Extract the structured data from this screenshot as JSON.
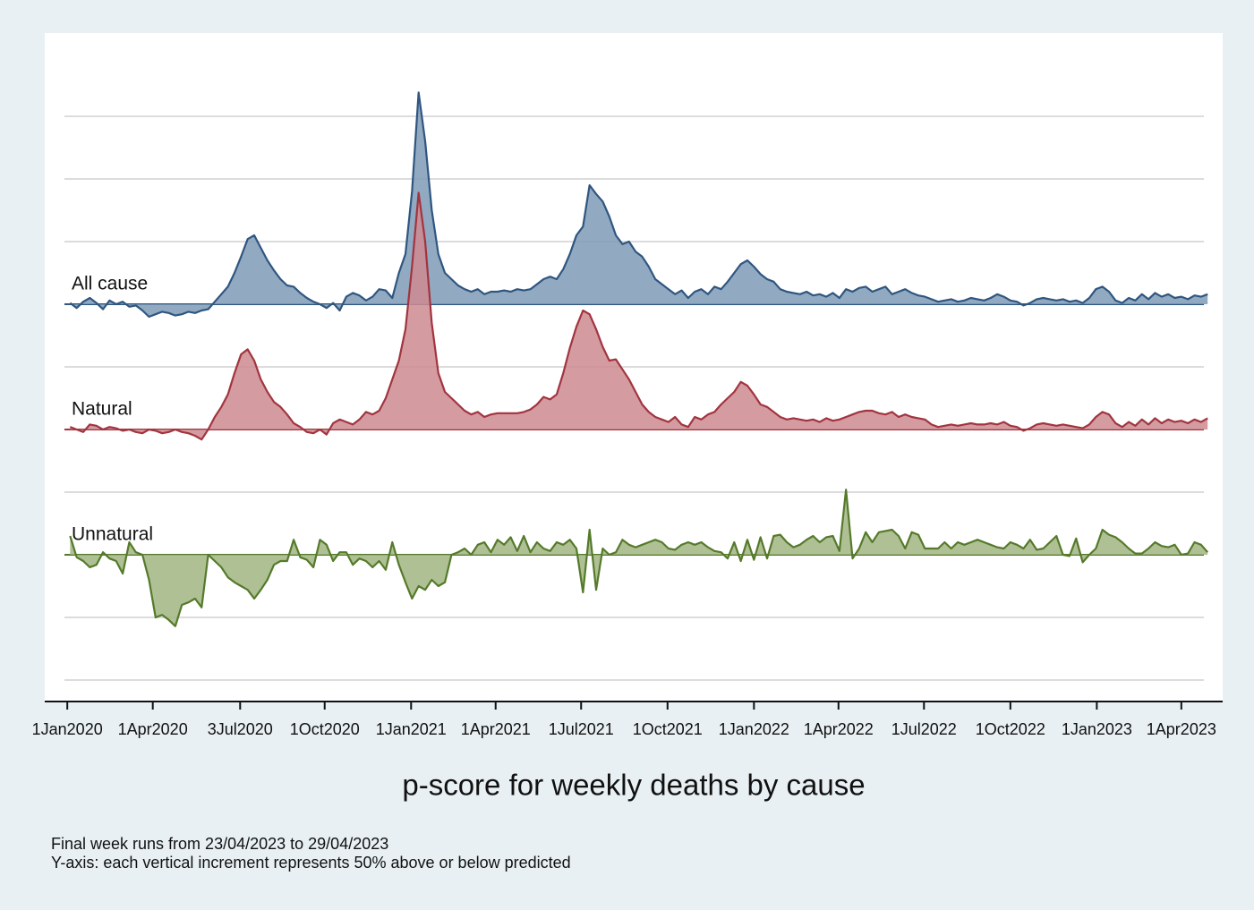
{
  "chart_data": {
    "type": "ridgeline",
    "title": "p-score for weekly deaths by cause",
    "notes": [
      "Final week runs from 23/04/2023 to 29/04/2023",
      "Y-axis: each vertical increment represents 50% above or below predicted"
    ],
    "xlim": [
      "2019-12-08",
      "2023-05-15"
    ],
    "ylim": [
      -300,
      200
    ],
    "yticks": [
      -300,
      -250,
      -200,
      -150,
      -100,
      -50,
      0,
      50,
      100,
      150
    ],
    "grid": true,
    "xticks": [
      {
        "value": "2020-01-01",
        "label": "1Jan2020"
      },
      {
        "value": "2020-04-01",
        "label": "1Apr2020"
      },
      {
        "value": "2020-07-03",
        "label": "3Jul2020"
      },
      {
        "value": "2020-10-01",
        "label": "1Oct2020"
      },
      {
        "value": "2021-01-01",
        "label": "1Jan2021"
      },
      {
        "value": "2021-04-01",
        "label": "1Apr2021"
      },
      {
        "value": "2021-07-01",
        "label": "1Jul2021"
      },
      {
        "value": "2021-10-01",
        "label": "1Oct2021"
      },
      {
        "value": "2022-01-01",
        "label": "1Jan2022"
      },
      {
        "value": "2022-04-01",
        "label": "1Apr2022"
      },
      {
        "value": "2022-07-01",
        "label": "1Jul2022"
      },
      {
        "value": "2022-10-01",
        "label": "1Oct2022"
      },
      {
        "value": "2023-01-01",
        "label": "1Jan2023"
      },
      {
        "value": "2023-04-01",
        "label": "1Apr2023"
      }
    ],
    "x": [
      "2020-01-04",
      "2020-01-11",
      "2020-01-18",
      "2020-01-25",
      "2020-02-01",
      "2020-02-08",
      "2020-02-15",
      "2020-02-22",
      "2020-02-29",
      "2020-03-07",
      "2020-03-14",
      "2020-03-21",
      "2020-03-28",
      "2020-04-04",
      "2020-04-11",
      "2020-04-18",
      "2020-04-25",
      "2020-05-02",
      "2020-05-09",
      "2020-05-16",
      "2020-05-23",
      "2020-05-30",
      "2020-06-06",
      "2020-06-13",
      "2020-06-20",
      "2020-06-27",
      "2020-07-04",
      "2020-07-11",
      "2020-07-18",
      "2020-07-25",
      "2020-08-01",
      "2020-08-08",
      "2020-08-15",
      "2020-08-22",
      "2020-08-29",
      "2020-09-05",
      "2020-09-12",
      "2020-09-19",
      "2020-09-26",
      "2020-10-03",
      "2020-10-10",
      "2020-10-17",
      "2020-10-24",
      "2020-10-31",
      "2020-11-07",
      "2020-11-14",
      "2020-11-21",
      "2020-11-28",
      "2020-12-05",
      "2020-12-12",
      "2020-12-19",
      "2020-12-26",
      "2021-01-02",
      "2021-01-09",
      "2021-01-16",
      "2021-01-23",
      "2021-01-30",
      "2021-02-06",
      "2021-02-13",
      "2021-02-20",
      "2021-02-27",
      "2021-03-06",
      "2021-03-13",
      "2021-03-20",
      "2021-03-27",
      "2021-04-03",
      "2021-04-10",
      "2021-04-17",
      "2021-04-24",
      "2021-05-01",
      "2021-05-08",
      "2021-05-15",
      "2021-05-22",
      "2021-05-29",
      "2021-06-05",
      "2021-06-12",
      "2021-06-19",
      "2021-06-26",
      "2021-07-03",
      "2021-07-10",
      "2021-07-17",
      "2021-07-24",
      "2021-07-31",
      "2021-08-07",
      "2021-08-14",
      "2021-08-21",
      "2021-08-28",
      "2021-09-04",
      "2021-09-11",
      "2021-09-18",
      "2021-09-25",
      "2021-10-02",
      "2021-10-09",
      "2021-10-16",
      "2021-10-23",
      "2021-10-30",
      "2021-11-06",
      "2021-11-13",
      "2021-11-20",
      "2021-11-27",
      "2021-12-04",
      "2021-12-11",
      "2021-12-18",
      "2021-12-25",
      "2022-01-01",
      "2022-01-08",
      "2022-01-15",
      "2022-01-22",
      "2022-01-29",
      "2022-02-05",
      "2022-02-12",
      "2022-02-19",
      "2022-02-26",
      "2022-03-05",
      "2022-03-12",
      "2022-03-19",
      "2022-03-26",
      "2022-04-02",
      "2022-04-09",
      "2022-04-16",
      "2022-04-23",
      "2022-04-30",
      "2022-05-07",
      "2022-05-14",
      "2022-05-21",
      "2022-05-28",
      "2022-06-04",
      "2022-06-11",
      "2022-06-18",
      "2022-06-25",
      "2022-07-02",
      "2022-07-09",
      "2022-07-16",
      "2022-07-23",
      "2022-07-30",
      "2022-08-06",
      "2022-08-13",
      "2022-08-20",
      "2022-08-27",
      "2022-09-03",
      "2022-09-10",
      "2022-09-17",
      "2022-09-24",
      "2022-10-01",
      "2022-10-08",
      "2022-10-15",
      "2022-10-22",
      "2022-10-29",
      "2022-11-05",
      "2022-11-12",
      "2022-11-19",
      "2022-11-26",
      "2022-12-03",
      "2022-12-10",
      "2022-12-17",
      "2022-12-24",
      "2022-12-31",
      "2023-01-07",
      "2023-01-14",
      "2023-01-21",
      "2023-01-28",
      "2023-02-04",
      "2023-02-11",
      "2023-02-18",
      "2023-02-25",
      "2023-03-04",
      "2023-03-11",
      "2023-03-18",
      "2023-03-25",
      "2023-04-01",
      "2023-04-08",
      "2023-04-15",
      "2023-04-22",
      "2023-04-29"
    ],
    "series": [
      {
        "name": "All cause",
        "baseline": 0,
        "color": "#2f5680",
        "fill": "#7f9bb6",
        "values": [
          1,
          -3,
          2,
          5,
          1,
          -4,
          3,
          0,
          2,
          -2,
          -1,
          -5,
          -10,
          -8,
          -6,
          -7,
          -9,
          -8,
          -6,
          -7,
          -5,
          -4,
          2,
          8,
          14,
          25,
          38,
          52,
          55,
          45,
          35,
          27,
          20,
          15,
          14,
          9,
          5,
          2,
          0,
          -3,
          1,
          -5,
          6,
          9,
          7,
          3,
          6,
          12,
          11,
          5,
          25,
          40,
          90,
          169,
          130,
          75,
          40,
          25,
          20,
          15,
          12,
          10,
          12,
          8,
          10,
          10,
          11,
          10,
          12,
          11,
          12,
          16,
          20,
          22,
          20,
          28,
          40,
          55,
          62,
          95,
          88,
          82,
          70,
          55,
          48,
          50,
          42,
          38,
          30,
          20,
          16,
          12,
          8,
          11,
          5,
          10,
          12,
          8,
          14,
          12,
          18,
          25,
          32,
          35,
          30,
          24,
          20,
          18,
          12,
          10,
          9,
          8,
          10,
          7,
          8,
          6,
          9,
          5,
          12,
          10,
          13,
          14,
          10,
          12,
          14,
          8,
          10,
          12,
          9,
          7,
          6,
          4,
          2,
          3,
          4,
          2,
          3,
          5,
          4,
          3,
          5,
          8,
          6,
          3,
          2,
          -1,
          1,
          4,
          5,
          4,
          3,
          4,
          2,
          3,
          1,
          5,
          12,
          14,
          10,
          3,
          1,
          5,
          3,
          8,
          4,
          9,
          6,
          8,
          5,
          6,
          4,
          7,
          6,
          8
        ]
      },
      {
        "name": "Natural",
        "baseline": -100,
        "color": "#a2343f",
        "fill": "#cc8b91",
        "values": [
          2,
          0,
          -2,
          4,
          3,
          0,
          2,
          1,
          -1,
          0,
          -2,
          -3,
          0,
          -1,
          -3,
          -2,
          0,
          -2,
          -3,
          -5,
          -8,
          0,
          10,
          18,
          28,
          45,
          60,
          64,
          55,
          40,
          30,
          22,
          18,
          12,
          5,
          2,
          -2,
          -3,
          0,
          -4,
          5,
          8,
          6,
          4,
          8,
          14,
          12,
          15,
          25,
          40,
          55,
          80,
          130,
          189,
          150,
          85,
          45,
          30,
          25,
          20,
          15,
          12,
          14,
          10,
          12,
          13,
          13,
          13,
          13,
          14,
          16,
          20,
          26,
          24,
          28,
          45,
          65,
          82,
          95,
          92,
          80,
          66,
          55,
          56,
          48,
          40,
          30,
          20,
          14,
          10,
          8,
          6,
          10,
          4,
          2,
          10,
          8,
          12,
          14,
          20,
          25,
          30,
          38,
          35,
          28,
          20,
          18,
          14,
          10,
          8,
          9,
          8,
          7,
          8,
          6,
          9,
          7,
          8,
          10,
          12,
          14,
          15,
          15,
          13,
          12,
          14,
          10,
          12,
          10,
          9,
          8,
          4,
          2,
          3,
          4,
          3,
          4,
          5,
          4,
          4,
          5,
          4,
          6,
          3,
          2,
          -1,
          1,
          4,
          5,
          4,
          3,
          4,
          3,
          2,
          1,
          4,
          10,
          14,
          12,
          5,
          2,
          6,
          3,
          8,
          4,
          9,
          5,
          8,
          6,
          7,
          5,
          8,
          6,
          9
        ]
      },
      {
        "name": "Unnatural",
        "baseline": -200,
        "color": "#557a2a",
        "fill": "#a1b583",
        "values": [
          15,
          -2,
          -5,
          -10,
          -8,
          2,
          -3,
          -5,
          -15,
          10,
          2,
          0,
          -20,
          -50,
          -48,
          -52,
          -57,
          -40,
          -38,
          -35,
          -42,
          0,
          -5,
          -10,
          -18,
          -22,
          -25,
          -28,
          -35,
          -28,
          -20,
          -8,
          -5,
          -5,
          12,
          -2,
          -4,
          -10,
          12,
          8,
          -5,
          2,
          2,
          -8,
          -3,
          -5,
          -10,
          -5,
          -12,
          10,
          -8,
          -22,
          -35,
          -25,
          -28,
          -20,
          -25,
          -22,
          0,
          2,
          5,
          0,
          8,
          10,
          2,
          12,
          8,
          14,
          3,
          15,
          2,
          10,
          5,
          3,
          10,
          8,
          12,
          5,
          -30,
          20,
          -28,
          5,
          0,
          2,
          12,
          8,
          6,
          8,
          10,
          12,
          10,
          5,
          4,
          8,
          10,
          8,
          10,
          6,
          3,
          2,
          -3,
          10,
          -5,
          12,
          -4,
          14,
          -3,
          15,
          16,
          10,
          6,
          8,
          12,
          15,
          10,
          14,
          15,
          3,
          52,
          -3,
          5,
          18,
          10,
          18,
          19,
          20,
          15,
          5,
          18,
          16,
          5,
          5,
          5,
          10,
          5,
          10,
          8,
          10,
          12,
          10,
          8,
          6,
          5,
          10,
          8,
          5,
          12,
          4,
          5,
          10,
          15,
          0,
          -1,
          13,
          -6,
          0,
          5,
          20,
          16,
          14,
          10,
          5,
          1,
          1,
          5,
          10,
          7,
          6,
          8,
          0,
          1,
          10,
          8,
          2
        ]
      }
    ]
  }
}
